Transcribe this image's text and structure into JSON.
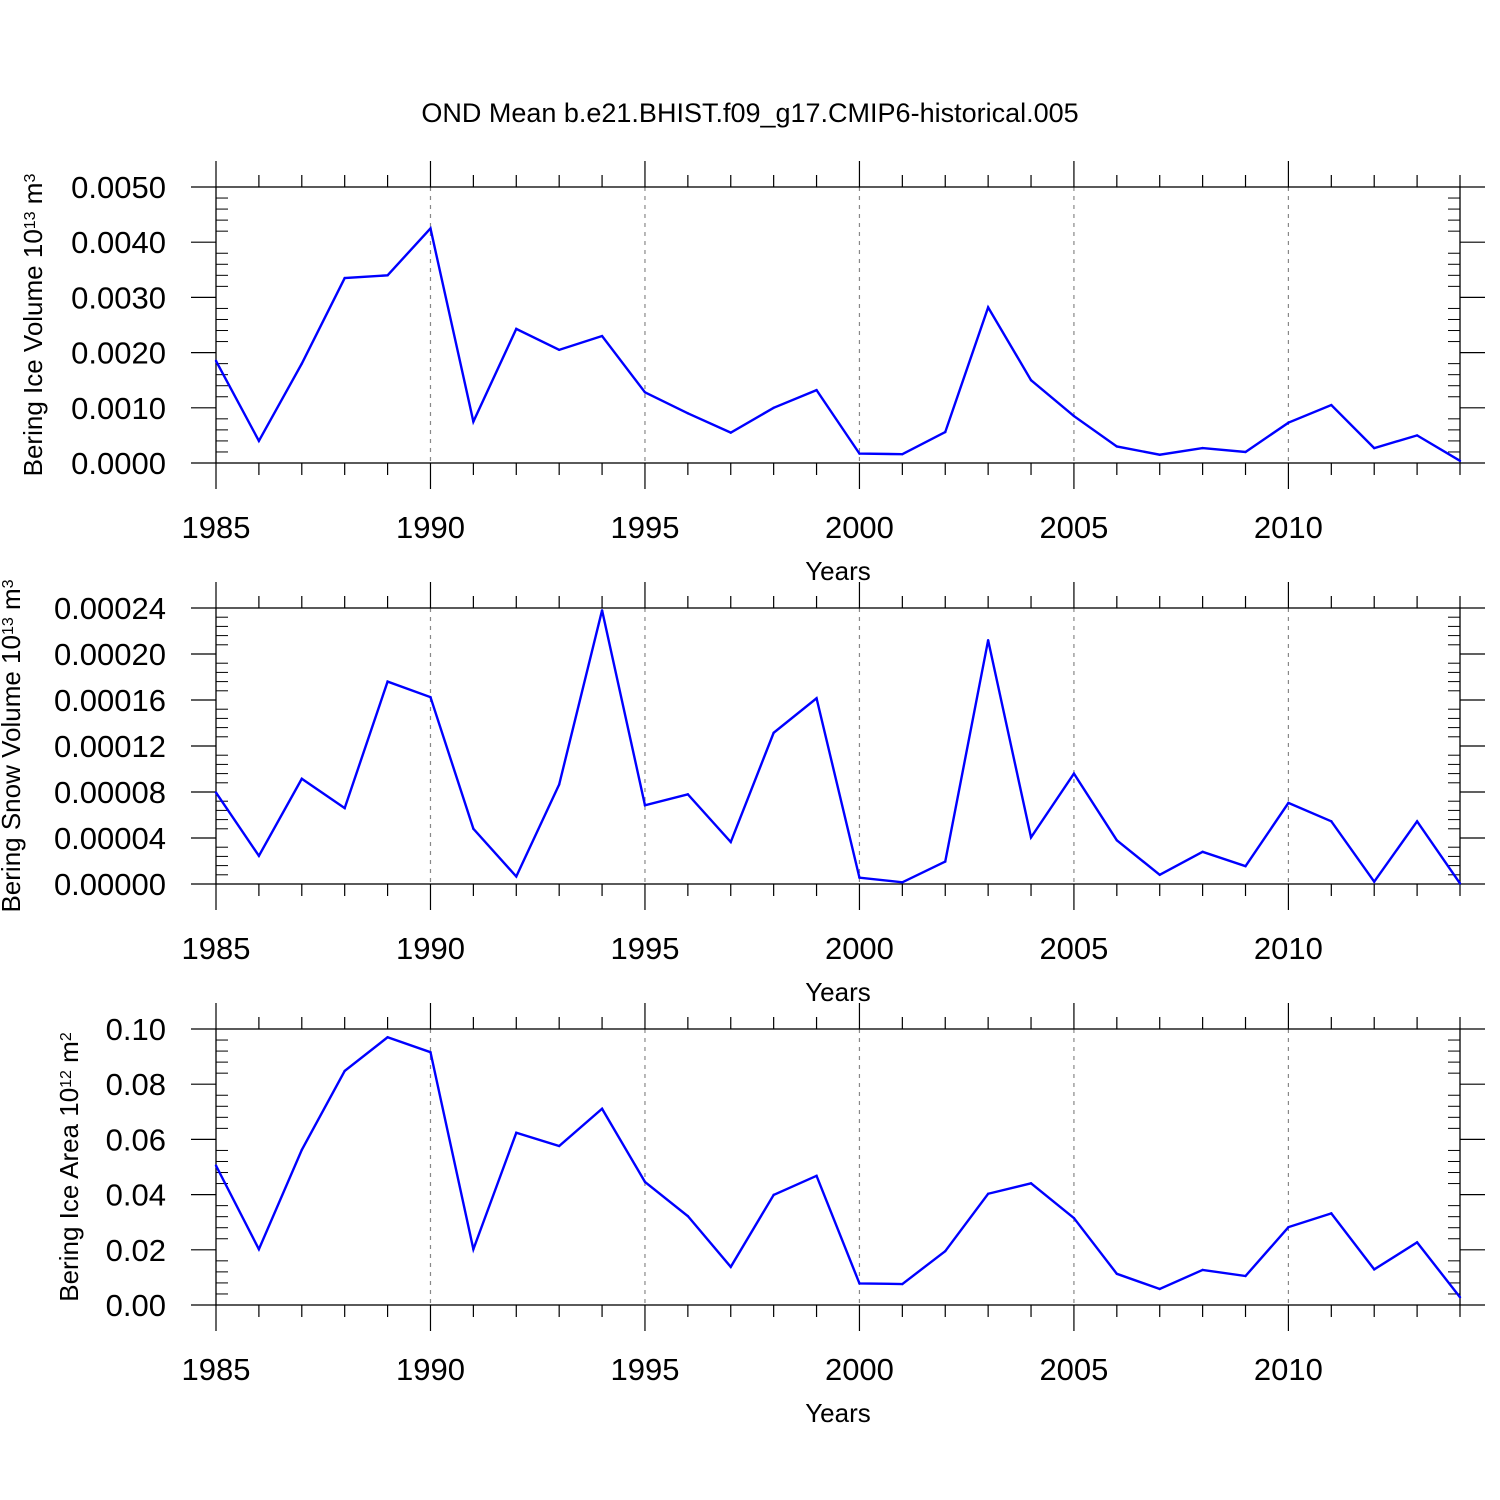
{
  "title": "OND Mean b.e21.BHIST.f09_g17.CMIP6-historical.005",
  "colors": {
    "line": "#0000ff",
    "axis": "#000000",
    "grid": "#888888"
  },
  "chart_data": [
    {
      "type": "line",
      "ylabel_main": "Bering Ice Volume 10",
      "ylabel_exp": "13",
      "ylabel_unit": " m",
      "ylabel_unit_exp": "3",
      "xlabel": "Years",
      "xlim": [
        1985,
        2014
      ],
      "ylim": [
        0,
        0.005
      ],
      "yticks": [
        "0.0000",
        "0.0010",
        "0.0020",
        "0.0030",
        "0.0040",
        "0.0050"
      ],
      "xticks": [
        "1985",
        "1990",
        "1995",
        "2000",
        "2005",
        "2010"
      ],
      "x": [
        1985,
        1986,
        1987,
        1988,
        1989,
        1990,
        1991,
        1992,
        1993,
        1994,
        1995,
        1996,
        1997,
        1998,
        1999,
        2000,
        2001,
        2002,
        2003,
        2004,
        2005,
        2006,
        2007,
        2008,
        2009,
        2010,
        2011,
        2012,
        2013,
        2014
      ],
      "values": [
        0.00185,
        0.0004,
        0.0018,
        0.00335,
        0.0034,
        0.00425,
        0.00075,
        0.00243,
        0.00205,
        0.0023,
        0.00128,
        0.0009,
        0.00055,
        0.001,
        0.00132,
        0.00017,
        0.00016,
        0.00056,
        0.00282,
        0.0015,
        0.00085,
        0.0003,
        0.00015,
        0.00027,
        0.0002,
        0.00073,
        0.00105,
        0.00027,
        0.0005,
        4e-05
      ]
    },
    {
      "type": "line",
      "ylabel_main": "Bering Snow Volume 10",
      "ylabel_exp": "13",
      "ylabel_unit": " m",
      "ylabel_unit_exp": "3",
      "xlabel": "Years",
      "xlim": [
        1985,
        2014
      ],
      "ylim": [
        0,
        0.00024
      ],
      "yticks": [
        "0.00000",
        "0.00004",
        "0.00008",
        "0.00012",
        "0.00016",
        "0.00020",
        "0.00024"
      ],
      "xticks": [
        "1985",
        "1990",
        "1995",
        "2000",
        "2005",
        "2010"
      ],
      "x": [
        1985,
        1986,
        1987,
        1988,
        1989,
        1990,
        1991,
        1992,
        1993,
        1994,
        1995,
        1996,
        1997,
        1998,
        1999,
        2000,
        2001,
        2002,
        2003,
        2004,
        2005,
        2006,
        2007,
        2008,
        2009,
        2010,
        2011,
        2012,
        2013,
        2014
      ],
      "values": [
        7.95e-05,
        2.45e-05,
        9.15e-05,
        6.6e-05,
        0.000176,
        0.0001625,
        4.8e-05,
        6.5e-06,
        8.65e-05,
        0.000238,
        6.85e-05,
        7.8e-05,
        3.65e-05,
        0.0001315,
        0.0001615,
        5.5e-06,
        1.5e-06,
        1.95e-05,
        0.000212,
        4.05e-05,
        9.6e-05,
        3.8e-05,
        8e-06,
        2.8e-05,
        1.55e-05,
        7.05e-05,
        5.45e-05,
        2e-06,
        5.45e-05,
        5e-07
      ]
    },
    {
      "type": "line",
      "ylabel_main": "Bering Ice Area 10",
      "ylabel_exp": "12",
      "ylabel_unit": " m",
      "ylabel_unit_exp": "2",
      "xlabel": "Years",
      "xlim": [
        1985,
        2014
      ],
      "ylim": [
        0,
        0.1
      ],
      "yticks": [
        "0.00",
        "0.02",
        "0.04",
        "0.06",
        "0.08",
        "0.10"
      ],
      "xticks": [
        "1985",
        "1990",
        "1995",
        "2000",
        "2005",
        "2010"
      ],
      "x": [
        1985,
        1986,
        1987,
        1988,
        1989,
        1990,
        1991,
        1992,
        1993,
        1994,
        1995,
        1996,
        1997,
        1998,
        1999,
        2000,
        2001,
        2002,
        2003,
        2004,
        2005,
        2006,
        2007,
        2008,
        2009,
        2010,
        2011,
        2012,
        2013,
        2014
      ],
      "values": [
        0.0505,
        0.0202,
        0.0562,
        0.0848,
        0.097,
        0.0916,
        0.0202,
        0.0624,
        0.0576,
        0.0711,
        0.0446,
        0.0322,
        0.0138,
        0.0399,
        0.0468,
        0.0078,
        0.0076,
        0.0195,
        0.0403,
        0.0441,
        0.0315,
        0.0113,
        0.0058,
        0.0127,
        0.0105,
        0.0282,
        0.0332,
        0.0129,
        0.0227,
        0.0028
      ]
    }
  ]
}
